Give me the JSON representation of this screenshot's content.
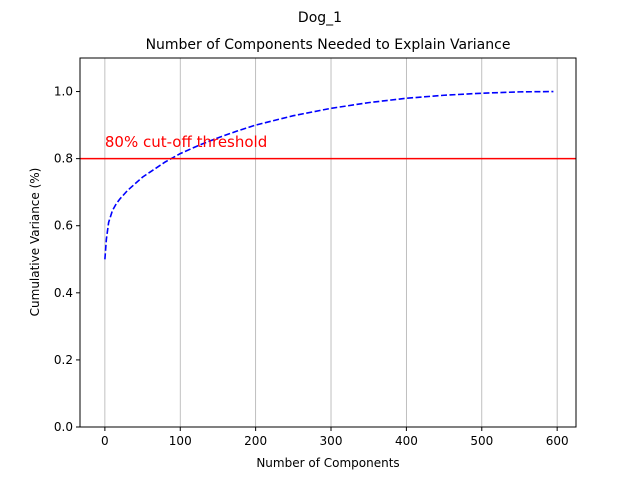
{
  "figure": {
    "suptitle": "Dog_1"
  },
  "colors": {
    "series": "#0000ff",
    "threshold": "#ff0000",
    "grid": "#b0b0b0",
    "axes": "#000000"
  },
  "chart_data": {
    "type": "line",
    "title": "Number of Components Needed to Explain Variance",
    "xlabel": "Number of Components",
    "ylabel": "Cumulative Variance (%)",
    "xlim": [
      -33,
      625
    ],
    "ylim": [
      0.0,
      1.1
    ],
    "xticks": [
      0,
      100,
      200,
      300,
      400,
      500,
      600
    ],
    "xtick_labels": [
      "0",
      "100",
      "200",
      "300",
      "400",
      "500",
      "600"
    ],
    "yticks": [
      0.0,
      0.2,
      0.4,
      0.6,
      0.8,
      1.0
    ],
    "ytick_labels": [
      "0.0",
      "0.2",
      "0.4",
      "0.6",
      "0.8",
      "1.0"
    ],
    "grid": "vertical",
    "series": [
      {
        "style": "dashed",
        "x": [
          0,
          2,
          5,
          10,
          15,
          20,
          30,
          40,
          50,
          60,
          80,
          100,
          125,
          150,
          175,
          200,
          250,
          300,
          350,
          400,
          450,
          500,
          550,
          595
        ],
        "y": [
          0.5,
          0.56,
          0.61,
          0.645,
          0.665,
          0.68,
          0.705,
          0.725,
          0.745,
          0.76,
          0.79,
          0.815,
          0.84,
          0.862,
          0.882,
          0.9,
          0.928,
          0.95,
          0.967,
          0.98,
          0.989,
          0.995,
          0.999,
          1.0
        ]
      }
    ],
    "threshold": {
      "y": 0.8,
      "label": "80% cut-off threshold",
      "label_x": 0,
      "label_y": 0.85
    }
  }
}
